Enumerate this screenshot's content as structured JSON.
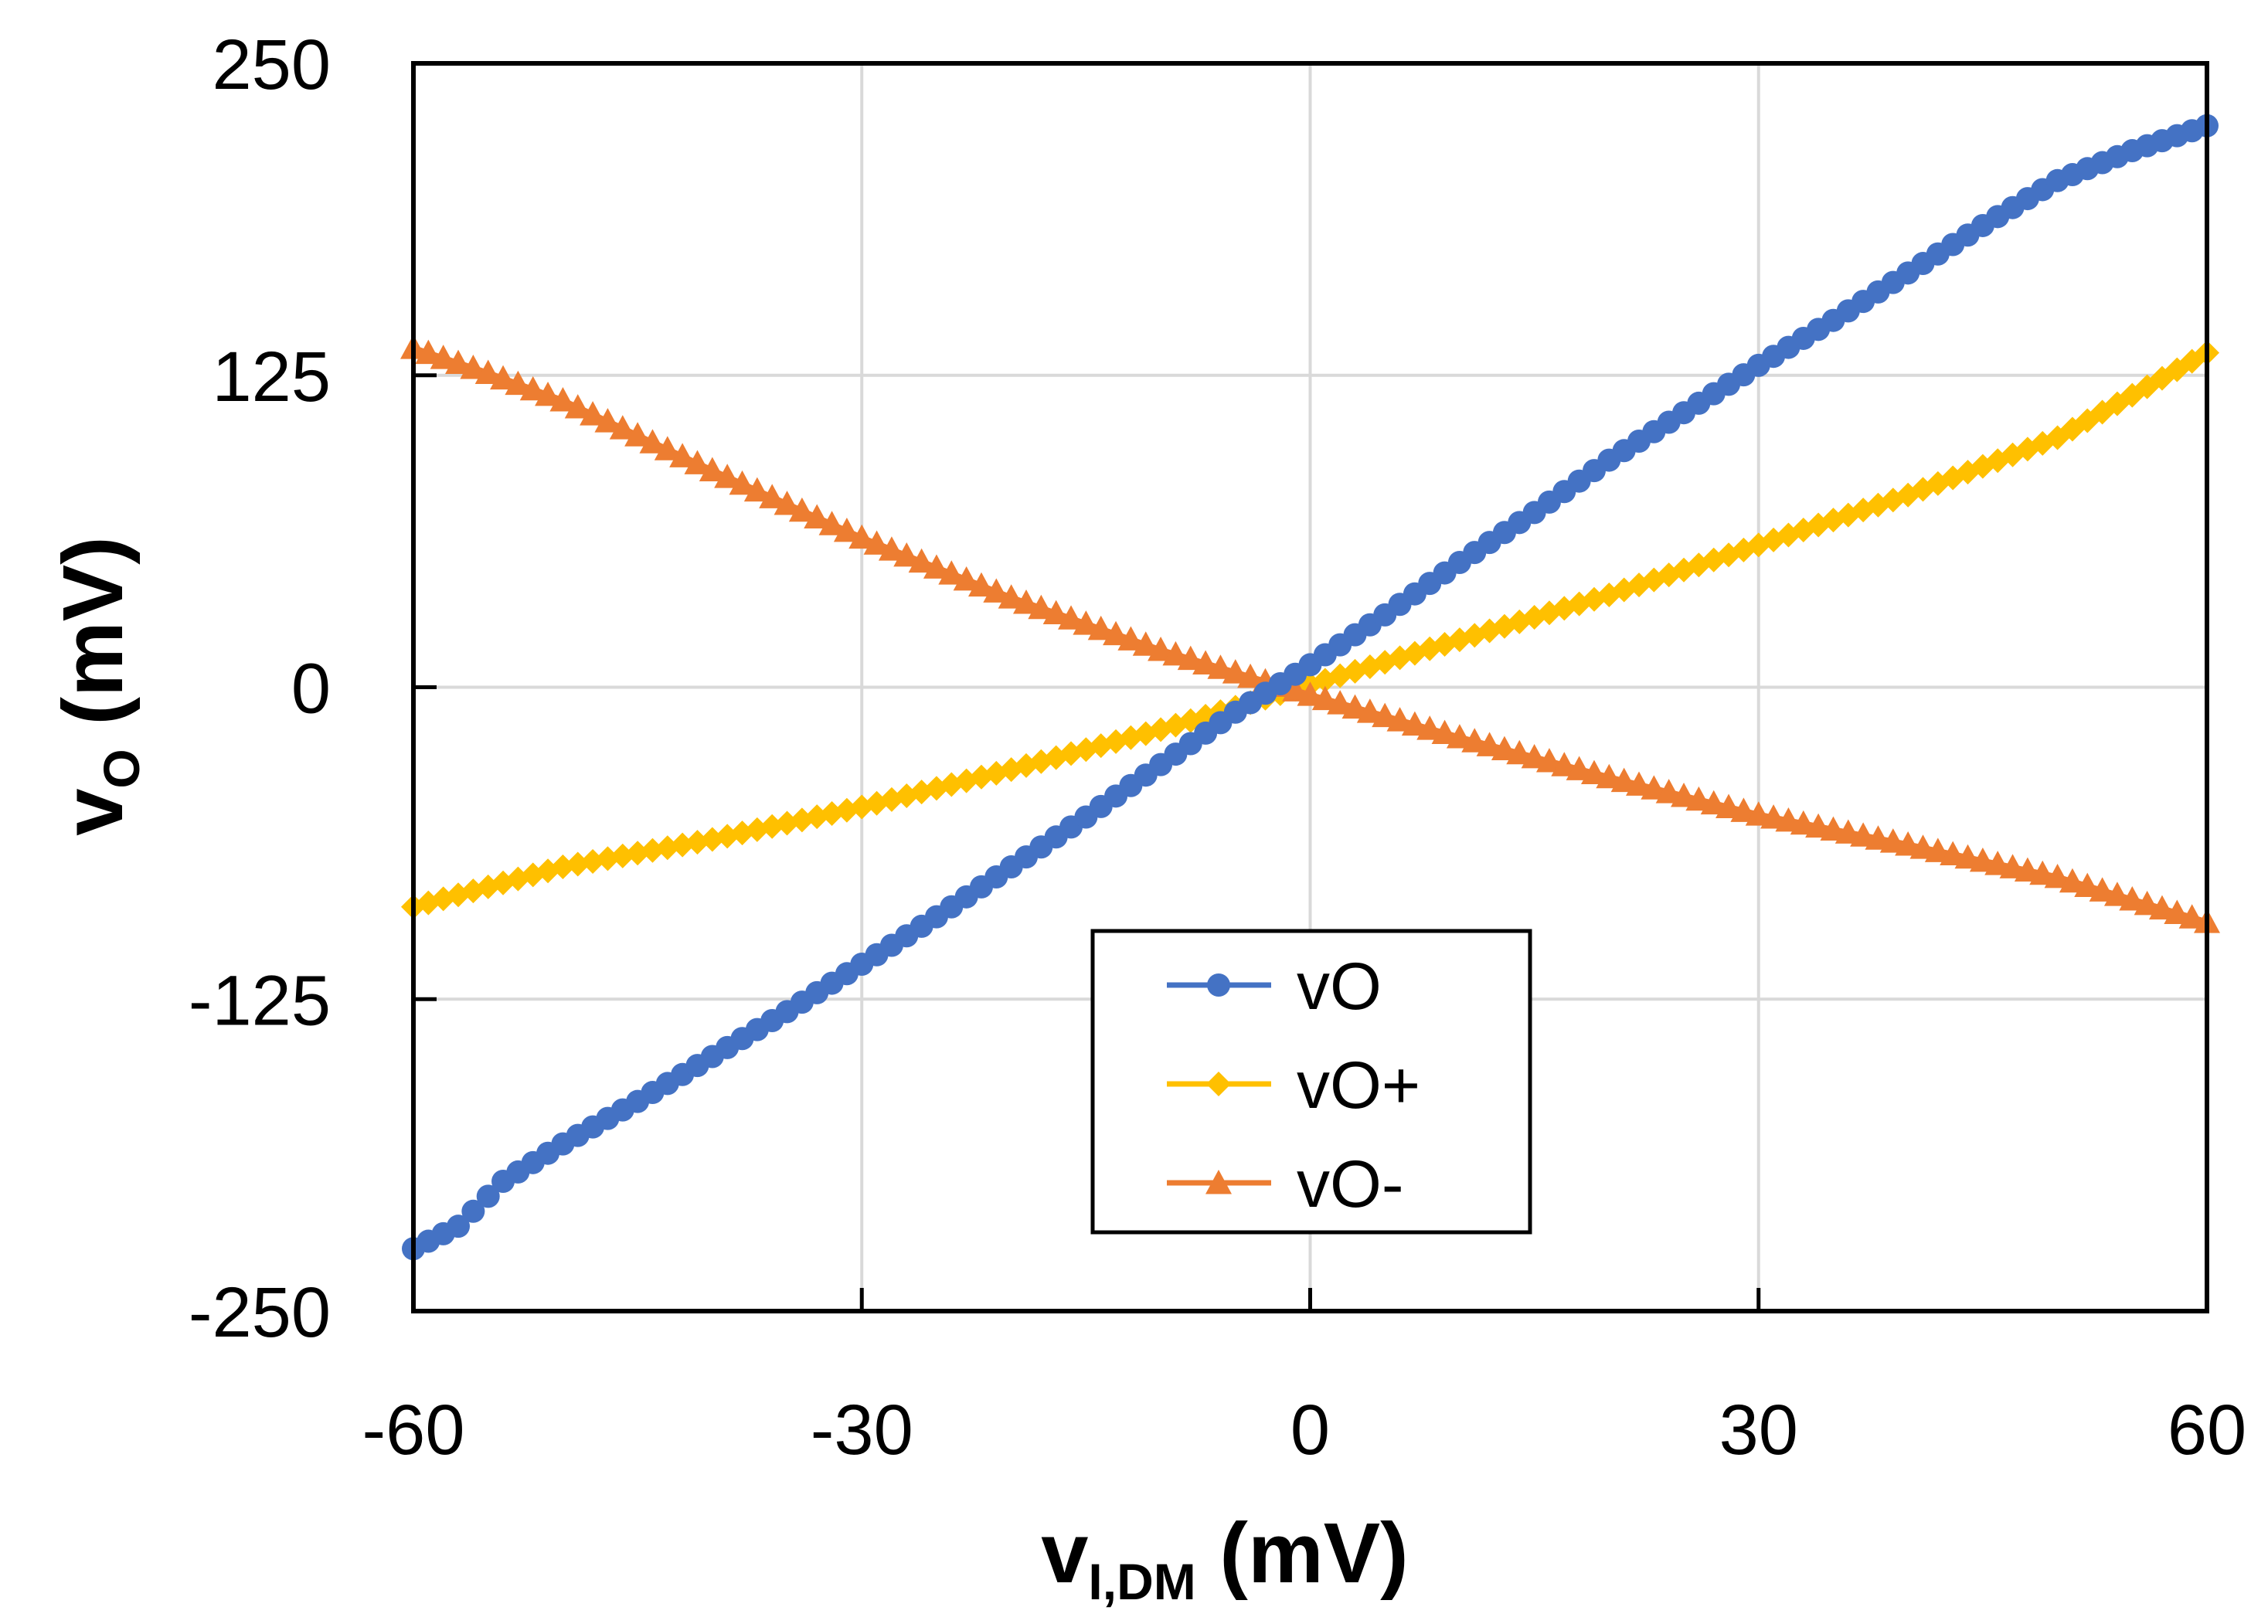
{
  "chart_data": {
    "type": "line",
    "title": "",
    "xlabel": {
      "main": "v",
      "sub": "I,DM",
      "unit": " (mV)"
    },
    "ylabel": {
      "main": "v",
      "sub": "O",
      "unit": " (mV)"
    },
    "xlim": [
      -60,
      60
    ],
    "ylim": [
      -250,
      250
    ],
    "xticks": [
      -60,
      -30,
      0,
      30,
      60
    ],
    "yticks": [
      -250,
      -125,
      0,
      125,
      250
    ],
    "xtick_labels": [
      "-60",
      "-30",
      "0",
      "30",
      "60"
    ],
    "ytick_labels": [
      "-250",
      "-125",
      "0",
      "125",
      "250"
    ],
    "grid": true,
    "legend_position": "center-bottom",
    "x_step": 1,
    "series": [
      {
        "name": "vO",
        "color": "#4472C4",
        "marker": "circle",
        "x_range": [
          -60,
          60
        ],
        "anchors_x": [
          -60,
          -57,
          -54,
          -50,
          -45,
          -40,
          -35,
          -30,
          -25,
          -20,
          -15,
          -10,
          -5,
          0,
          5,
          10,
          15,
          20,
          25,
          30,
          35,
          40,
          45,
          50,
          55,
          60
        ],
        "anchors_y": [
          -225,
          -216,
          -198,
          -183,
          -166,
          -148,
          -130,
          -111,
          -92,
          -72,
          -52,
          -31,
          -10,
          9,
          29,
          50,
          70,
          91,
          110,
          129,
          147,
          166,
          185,
          203,
          215,
          225
        ]
      },
      {
        "name": "vO+",
        "color": "#FFC000",
        "marker": "diamond",
        "x_range": [
          -60,
          60
        ],
        "anchors_x": [
          -60,
          -50,
          -40,
          -30,
          -20,
          -10,
          0,
          10,
          20,
          30,
          40,
          50,
          60
        ],
        "anchors_y": [
          -88,
          -72,
          -61,
          -48,
          -33,
          -17,
          1,
          19,
          37,
          57,
          77,
          100,
          134
        ]
      },
      {
        "name": "vO-",
        "color": "#ED7D31",
        "marker": "triangle",
        "x_range": [
          -60,
          60
        ],
        "anchors_x": [
          -60,
          -55,
          -50,
          -40,
          -30,
          -20,
          -10,
          0,
          10,
          20,
          30,
          40,
          50,
          60
        ],
        "anchors_y": [
          136,
          126,
          115,
          87,
          60,
          36,
          15,
          -3,
          -20,
          -36,
          -51,
          -63,
          -76,
          -94
        ]
      }
    ]
  }
}
